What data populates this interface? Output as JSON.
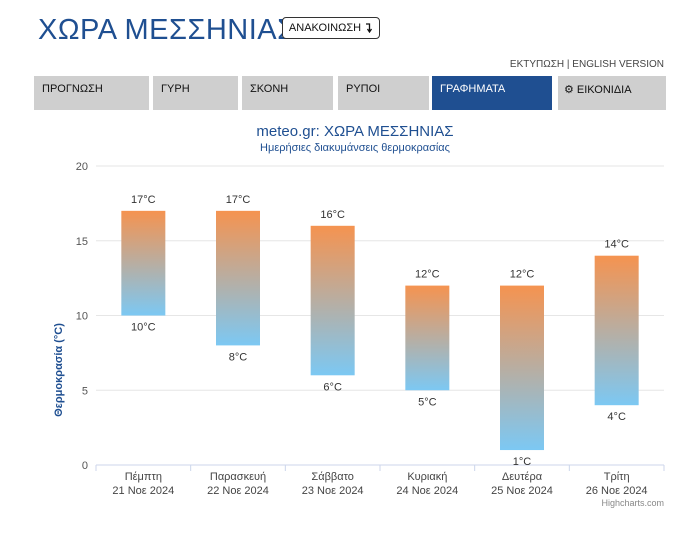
{
  "header": {
    "title": "ΧΩΡΑ ΜΕΣΣΗΝΙΑΣ",
    "announce_label": "ΑΝΑΚΟΙΝΩΣΗ",
    "announce_icon": "arrow-down-icon",
    "print_label": "ΕΚΤΥΠΩΣΗ",
    "separator": " | ",
    "english_label": "ENGLISH VERSION"
  },
  "tabs": [
    {
      "label": "ΠΡΟΓΝΩΣΗ",
      "active": false
    },
    {
      "label": "ΓΥΡΗ",
      "active": false
    },
    {
      "label": "ΣΚΟΝΗ",
      "active": false
    },
    {
      "label": "ΡΥΠΟΙ",
      "active": false
    },
    {
      "label": "ΓΡΑΦΗΜΑΤΑ",
      "active": true
    },
    {
      "label": "ΕΙΚΟΝΙΔΙΑ",
      "active": false,
      "icon": "gear-icon"
    }
  ],
  "colors": {
    "brand": "#1f4f91",
    "bar_top": "#f59350",
    "bar_bottom": "#7cc8f3",
    "tab_inactive": "#cfcfcf"
  },
  "chart_data": {
    "type": "columnrange",
    "title": "meteo.gr: ΧΩΡΑ ΜΕΣΣΗΝΙΑΣ",
    "subtitle": "Ημερήσιες διακυμάνσεις θερμοκρασίας",
    "ylabel": "Θερμοκρασία (°C)",
    "ylim": [
      0,
      20
    ],
    "yticks": [
      "0",
      "5",
      "10",
      "15",
      "20"
    ],
    "grid": true,
    "categories": [
      {
        "day": "Πέμπτη",
        "date": "21 Νοε 2024"
      },
      {
        "day": "Παρασκευή",
        "date": "22 Νοε 2024"
      },
      {
        "day": "Σάββατο",
        "date": "23 Νοε 2024"
      },
      {
        "day": "Κυριακή",
        "date": "24 Νοε 2024"
      },
      {
        "day": "Δευτέρα",
        "date": "25 Νοε 2024"
      },
      {
        "day": "Τρίτη",
        "date": "26 Νοε 2024"
      }
    ],
    "low": [
      10,
      8,
      6,
      5,
      1,
      4
    ],
    "high": [
      17,
      17,
      16,
      12,
      12,
      14
    ],
    "low_labels": [
      "10°C",
      "8°C",
      "6°C",
      "5°C",
      "1°C",
      "4°C"
    ],
    "high_labels": [
      "17°C",
      "17°C",
      "16°C",
      "12°C",
      "12°C",
      "14°C"
    ],
    "credits": "Highcharts.com"
  }
}
